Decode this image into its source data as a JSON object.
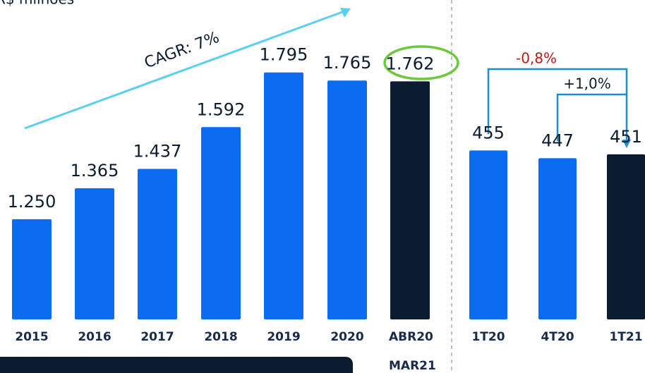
{
  "chart_data": [
    {
      "type": "bar",
      "subtitle": "R$ milhões",
      "categories": [
        "2015",
        "2016",
        "2017",
        "2018",
        "2019",
        "2020",
        "ABR20 MAR21"
      ],
      "values": [
        1250,
        1365,
        1437,
        1592,
        1795,
        1765,
        1762
      ],
      "value_labels": [
        "1.250",
        "1.365",
        "1.437",
        "1.592",
        "1.795",
        "1.765",
        "1.762"
      ],
      "colors": [
        "#0b6cf2",
        "#0b6cf2",
        "#0b6cf2",
        "#0b6cf2",
        "#0b6cf2",
        "#0b6cf2",
        "#0c1c30"
      ],
      "ylim": [
        878,
        2064
      ],
      "annotations": [
        "CAGR: 7%"
      ]
    },
    {
      "type": "bar",
      "categories": [
        "1T20",
        "4T20",
        "1T21"
      ],
      "values": [
        455,
        447,
        451
      ],
      "colors": [
        "#0b6cf2",
        "#0b6cf2",
        "#0c1c30"
      ],
      "ylim": [
        281,
        610
      ],
      "annotations": [
        "-0,8%",
        "+1,0%"
      ]
    }
  ]
}
